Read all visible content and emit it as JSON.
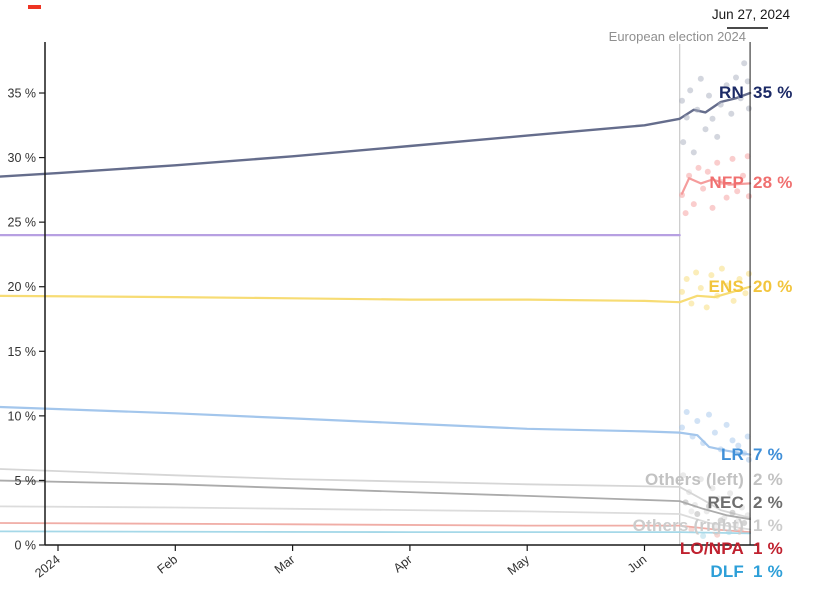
{
  "header": {
    "date_label": "Jun 27, 2024",
    "event_label": "European election 2024"
  },
  "chart_data": {
    "type": "line",
    "x_axis": {
      "tick_labels": [
        "2024",
        "Feb",
        "Mar",
        "Apr",
        "May",
        "Jun"
      ],
      "tick_months": [
        0,
        1,
        2,
        3,
        4,
        5
      ]
    },
    "y_axis": {
      "ticks": [
        0,
        5,
        10,
        15,
        20,
        25,
        30,
        35
      ],
      "suffix": " %",
      "range": [
        0,
        39
      ]
    },
    "timeline": {
      "start_month": -0.55,
      "end_month": 5.9,
      "event_month": 5.3
    },
    "colors": {
      "axis": "#1a1a1a",
      "tick_text": "#333333",
      "event_line": "#c9c9c9",
      "end_line": "#1a1a1a"
    },
    "series": [
      {
        "id": "left-union",
        "name": "",
        "end_label": "",
        "line_color": "#b7a0e2",
        "label_color": "#b7a0e2",
        "width": 2.2,
        "points": [
          [
            -0.55,
            24.0
          ],
          [
            5.3,
            24.0
          ]
        ],
        "dots": []
      },
      {
        "id": "others-right",
        "name": "Others (right)",
        "end_label": "1 %",
        "line_color": "#dcdcdc",
        "label_color": "#cccccc",
        "width": 1.8,
        "points": [
          [
            -0.55,
            3.0
          ],
          [
            1,
            2.9
          ],
          [
            2,
            2.8
          ],
          [
            3,
            2.7
          ],
          [
            4,
            2.6
          ],
          [
            5.3,
            2.4
          ],
          [
            5.55,
            1.7
          ],
          [
            5.9,
            1.2
          ]
        ],
        "dots": [
          [
            5.4,
            2.6
          ],
          [
            5.6,
            1.4
          ],
          [
            5.8,
            1.9
          ]
        ]
      },
      {
        "id": "others-left",
        "name": "Others (left)",
        "end_label": "2 %",
        "line_color": "#d6d6d6",
        "label_color": "#c2c2c2",
        "width": 1.8,
        "points": [
          [
            -0.55,
            5.9
          ],
          [
            1,
            5.4
          ],
          [
            2,
            5.1
          ],
          [
            3,
            4.9
          ],
          [
            4,
            4.7
          ],
          [
            5.3,
            4.5
          ],
          [
            5.5,
            3.5
          ],
          [
            5.65,
            2.7
          ],
          [
            5.9,
            2.1
          ]
        ],
        "dots": [
          [
            5.33,
            5.4
          ],
          [
            5.38,
            4.1
          ],
          [
            5.43,
            3.1
          ],
          [
            5.48,
            5.1
          ],
          [
            5.53,
            2.6
          ],
          [
            5.58,
            4.4
          ],
          [
            5.63,
            3.6
          ],
          [
            5.68,
            2.1
          ],
          [
            5.73,
            4.0
          ],
          [
            5.78,
            1.6
          ],
          [
            5.83,
            2.9
          ],
          [
            5.88,
            2.3
          ]
        ]
      },
      {
        "id": "rec",
        "name": "REC",
        "end_label": "2 %",
        "line_color": "#ababab",
        "label_color": "#6e6e6e",
        "width": 1.8,
        "points": [
          [
            -0.55,
            5.0
          ],
          [
            1,
            4.7
          ],
          [
            2,
            4.4
          ],
          [
            3,
            4.1
          ],
          [
            4,
            3.8
          ],
          [
            5.3,
            3.4
          ],
          [
            5.5,
            2.8
          ],
          [
            5.7,
            2.3
          ],
          [
            5.9,
            2.0
          ]
        ],
        "dots": [
          [
            5.35,
            3.3
          ],
          [
            5.45,
            2.4
          ],
          [
            5.55,
            3.0
          ],
          [
            5.65,
            1.9
          ],
          [
            5.75,
            2.5
          ],
          [
            5.85,
            1.7
          ]
        ]
      },
      {
        "id": "lo-npa",
        "name": "LO/NPA",
        "end_label": "1 %",
        "line_color": "#f0ada6",
        "label_color": "#c0212f",
        "width": 1.8,
        "points": [
          [
            -0.55,
            1.7
          ],
          [
            2,
            1.6
          ],
          [
            4,
            1.5
          ],
          [
            5.3,
            1.5
          ],
          [
            5.6,
            1.2
          ],
          [
            5.9,
            1.0
          ]
        ],
        "dots": [
          [
            5.4,
            1.2
          ],
          [
            5.62,
            0.8
          ],
          [
            5.82,
            1.1
          ]
        ]
      },
      {
        "id": "dlf",
        "name": "DLF",
        "end_label": "1 %",
        "line_color": "#a5d8e8",
        "label_color": "#2d9fd8",
        "width": 1.8,
        "points": [
          [
            -0.55,
            1.05
          ],
          [
            3,
            1.0
          ],
          [
            5.3,
            1.0
          ],
          [
            5.9,
            0.9
          ]
        ],
        "dots": [
          [
            5.5,
            0.7
          ],
          [
            5.72,
            1.0
          ]
        ]
      },
      {
        "id": "lr",
        "name": "LR",
        "end_label": "7 %",
        "line_color": "#a3c6ec",
        "label_color": "#3f8fd8",
        "width": 2.2,
        "points": [
          [
            -0.55,
            10.7
          ],
          [
            1,
            10.2
          ],
          [
            2,
            9.8
          ],
          [
            3,
            9.4
          ],
          [
            4,
            9.0
          ],
          [
            5,
            8.8
          ],
          [
            5.3,
            8.7
          ],
          [
            5.45,
            8.5
          ],
          [
            5.55,
            7.6
          ],
          [
            5.7,
            7.3
          ],
          [
            5.9,
            7.0
          ]
        ],
        "dots": [
          [
            5.32,
            9.1
          ],
          [
            5.36,
            10.3
          ],
          [
            5.41,
            8.4
          ],
          [
            5.45,
            9.6
          ],
          [
            5.5,
            7.9
          ],
          [
            5.55,
            10.1
          ],
          [
            5.6,
            8.7
          ],
          [
            5.65,
            7.4
          ],
          [
            5.7,
            9.3
          ],
          [
            5.75,
            8.1
          ],
          [
            5.8,
            7.7
          ],
          [
            5.85,
            7.1
          ],
          [
            5.88,
            8.4
          ],
          [
            5.89,
            6.6
          ]
        ]
      },
      {
        "id": "ens",
        "name": "ENS",
        "end_label": "20 %",
        "line_color": "#f7dc74",
        "label_color": "#f2c53d",
        "width": 2.2,
        "points": [
          [
            -0.55,
            19.3
          ],
          [
            1,
            19.2
          ],
          [
            2,
            19.1
          ],
          [
            3,
            19.0
          ],
          [
            4,
            19.0
          ],
          [
            5,
            18.9
          ],
          [
            5.3,
            18.8
          ],
          [
            5.45,
            19.3
          ],
          [
            5.6,
            19.2
          ],
          [
            5.75,
            19.6
          ],
          [
            5.9,
            20.0
          ]
        ],
        "dots": [
          [
            5.32,
            19.6
          ],
          [
            5.36,
            20.6
          ],
          [
            5.4,
            18.7
          ],
          [
            5.44,
            21.1
          ],
          [
            5.48,
            19.9
          ],
          [
            5.53,
            18.4
          ],
          [
            5.57,
            20.9
          ],
          [
            5.62,
            19.3
          ],
          [
            5.66,
            21.4
          ],
          [
            5.71,
            20.1
          ],
          [
            5.76,
            18.9
          ],
          [
            5.81,
            20.6
          ],
          [
            5.86,
            19.5
          ],
          [
            5.89,
            21.0
          ]
        ]
      },
      {
        "id": "nfp",
        "name": "NFP",
        "end_label": "28 %",
        "line_color": "#f59c9c",
        "label_color": "#f07070",
        "width": 2.2,
        "points": [
          [
            5.32,
            27.2
          ],
          [
            5.38,
            28.4
          ],
          [
            5.48,
            28.0
          ],
          [
            5.58,
            28.3
          ],
          [
            5.72,
            27.9
          ],
          [
            5.9,
            28.0
          ]
        ],
        "dots": [
          [
            5.32,
            27.1
          ],
          [
            5.35,
            25.7
          ],
          [
            5.38,
            28.6
          ],
          [
            5.42,
            26.4
          ],
          [
            5.46,
            29.2
          ],
          [
            5.5,
            27.6
          ],
          [
            5.54,
            28.9
          ],
          [
            5.58,
            26.1
          ],
          [
            5.62,
            29.6
          ],
          [
            5.66,
            28.1
          ],
          [
            5.7,
            26.9
          ],
          [
            5.75,
            29.9
          ],
          [
            5.79,
            27.4
          ],
          [
            5.84,
            28.6
          ],
          [
            5.88,
            30.1
          ],
          [
            5.89,
            27.0
          ]
        ]
      },
      {
        "id": "rn",
        "name": "RN",
        "end_label": "35 %",
        "line_color": "#656d8c",
        "label_color": "#1c2a66",
        "width": 2.4,
        "dot_color": "#a7adbe",
        "points": [
          [
            -0.55,
            28.5
          ],
          [
            0,
            28.8
          ],
          [
            1,
            29.4
          ],
          [
            2,
            30.1
          ],
          [
            3,
            30.9
          ],
          [
            4,
            31.7
          ],
          [
            5,
            32.5
          ],
          [
            5.3,
            33.0
          ],
          [
            5.42,
            33.7
          ],
          [
            5.52,
            33.5
          ],
          [
            5.65,
            34.3
          ],
          [
            5.78,
            34.6
          ],
          [
            5.9,
            35.0
          ]
        ],
        "dots": [
          [
            5.32,
            34.4
          ],
          [
            5.33,
            31.2
          ],
          [
            5.36,
            33.1
          ],
          [
            5.39,
            35.2
          ],
          [
            5.42,
            30.4
          ],
          [
            5.45,
            33.7
          ],
          [
            5.48,
            36.1
          ],
          [
            5.52,
            32.2
          ],
          [
            5.55,
            34.8
          ],
          [
            5.58,
            33.0
          ],
          [
            5.62,
            31.6
          ],
          [
            5.65,
            34.1
          ],
          [
            5.7,
            35.6
          ],
          [
            5.74,
            33.4
          ],
          [
            5.78,
            36.2
          ],
          [
            5.82,
            34.6
          ],
          [
            5.85,
            37.3
          ],
          [
            5.88,
            35.9
          ],
          [
            5.89,
            33.8
          ]
        ]
      }
    ]
  }
}
